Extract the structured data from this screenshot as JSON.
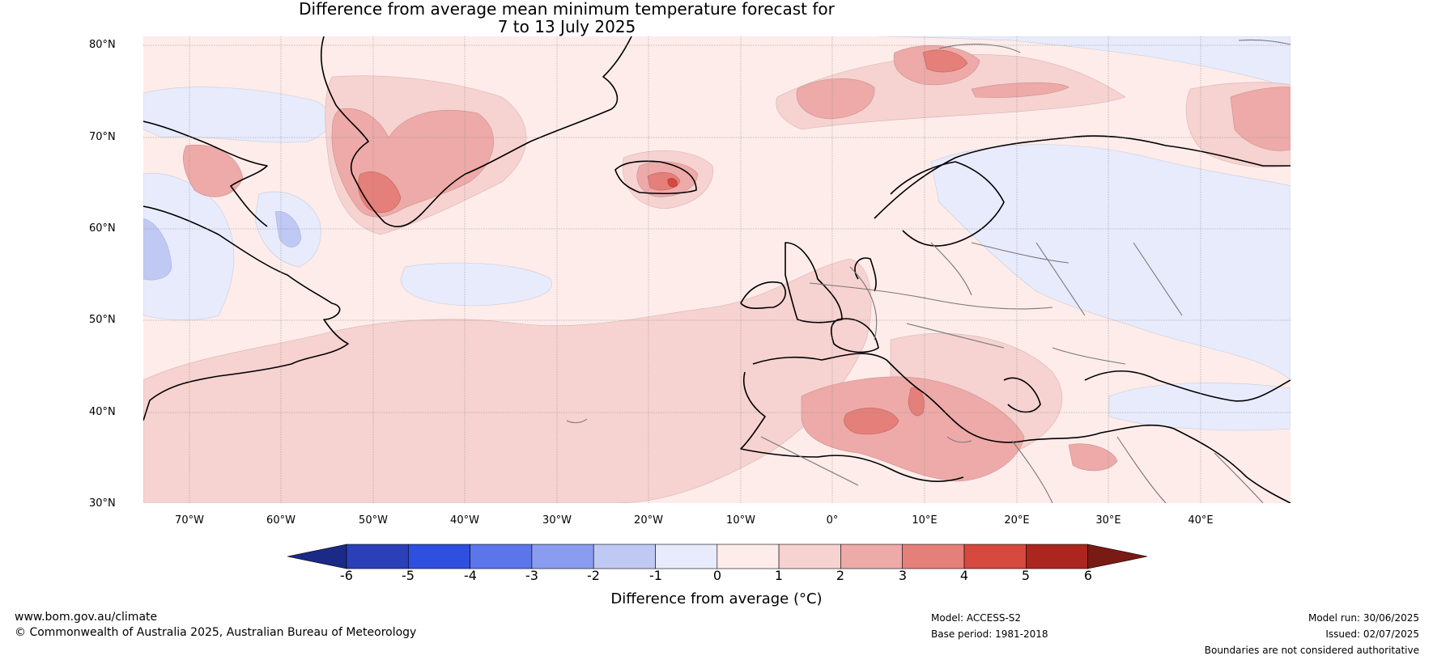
{
  "title": {
    "line1": "Difference from average mean minimum temperature forecast for",
    "line2": "7 to 13 July 2025"
  },
  "map": {
    "lat_ticks": [
      "80°N",
      "70°N",
      "60°N",
      "50°N",
      "40°N",
      "30°N"
    ],
    "lon_ticks": [
      "70°W",
      "60°W",
      "50°W",
      "40°W",
      "30°W",
      "20°W",
      "10°W",
      "0°",
      "10°E",
      "20°E",
      "30°E",
      "40°E"
    ],
    "background_color": "#fdecea"
  },
  "colorbar": {
    "ticks": [
      "-6",
      "-5",
      "-4",
      "-3",
      "-2",
      "-1",
      "0",
      "1",
      "2",
      "3",
      "4",
      "5",
      "6"
    ],
    "colors": [
      "#1b2a86",
      "#2a3fb8",
      "#2f4fe0",
      "#5c75ea",
      "#8a9cf0",
      "#c0c9f4",
      "#e8ebfc",
      "#fdecea",
      "#f6d2d0",
      "#edaaa8",
      "#e57f79",
      "#d6493f",
      "#aa261e",
      "#7a1a14"
    ],
    "label": "Difference from average (°C)"
  },
  "footer": {
    "website": "www.bom.gov.au/climate",
    "copyright": "© Commonwealth of Australia 2025, Australian Bureau of Meteorology",
    "model": "Model: ACCESS-S2",
    "base_period": "Base period: 1981-2018",
    "model_run": "Model run: 30/06/2025",
    "issued": "Issued: 02/07/2025",
    "disclaimer": "Boundaries are not considered authoritative"
  }
}
